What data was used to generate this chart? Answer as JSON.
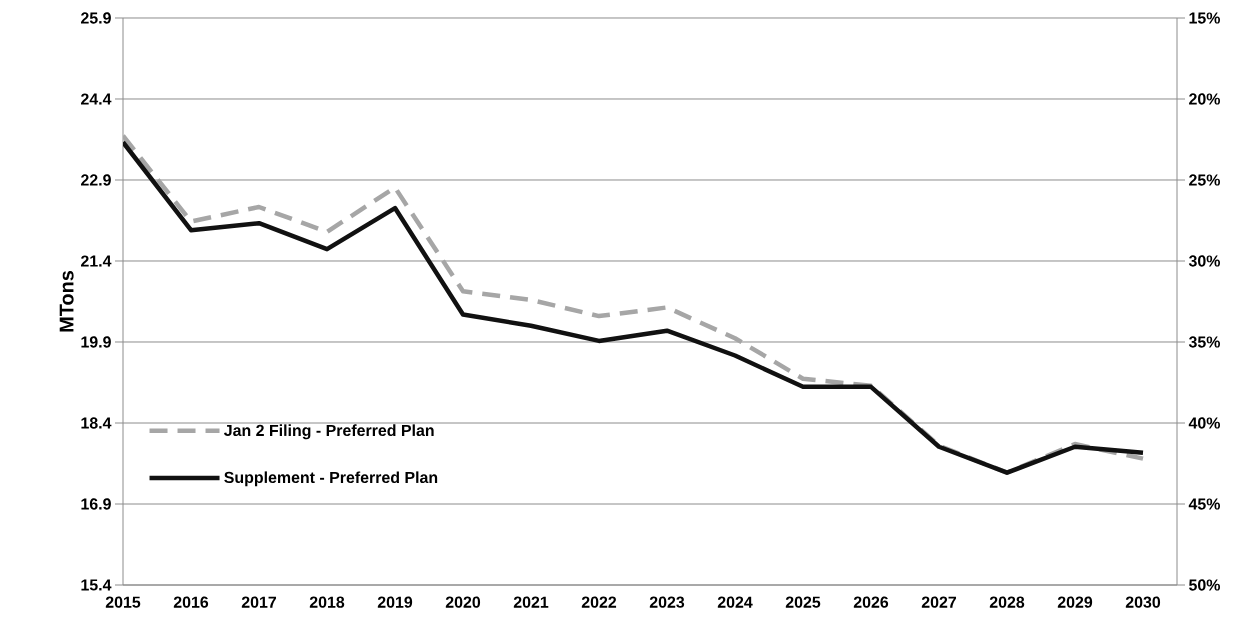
{
  "chart_data": {
    "type": "line",
    "ylabel": "MTons",
    "categories": [
      "2015",
      "2016",
      "2017",
      "2018",
      "2019",
      "2020",
      "2021",
      "2022",
      "2023",
      "2024",
      "2025",
      "2026",
      "2027",
      "2028",
      "2029",
      "2030"
    ],
    "series": [
      {
        "name": "Jan 2 Filing - Preferred Plan",
        "color": "#a6a6a6",
        "line_style": "dashed",
        "values": [
          23.72,
          22.13,
          22.4,
          21.94,
          22.76,
          20.84,
          20.68,
          20.38,
          20.54,
          19.97,
          19.22,
          19.09,
          17.98,
          17.48,
          18.01,
          17.74
        ]
      },
      {
        "name": "Supplement - Preferred Plan",
        "color": "#111111",
        "line_style": "solid",
        "values": [
          23.6,
          21.97,
          22.1,
          21.62,
          22.38,
          20.41,
          20.2,
          19.92,
          20.11,
          19.65,
          19.07,
          19.07,
          17.96,
          17.48,
          17.96,
          17.85
        ]
      }
    ],
    "ylim": [
      15.4,
      25.9
    ],
    "yticks": [
      15.4,
      16.9,
      18.4,
      19.9,
      21.4,
      22.9,
      24.4,
      25.9
    ],
    "y2lim": [
      50,
      15
    ],
    "y2ticks": [
      {
        "value": 15,
        "label": "15%"
      },
      {
        "value": 20,
        "label": "20%"
      },
      {
        "value": 25,
        "label": "25%"
      },
      {
        "value": 30,
        "label": "30%"
      },
      {
        "value": 35,
        "label": "35%"
      },
      {
        "value": 40,
        "label": "40%"
      },
      {
        "value": 45,
        "label": "45%"
      },
      {
        "value": 50,
        "label": "50%"
      }
    ],
    "grid": "y",
    "legend": "left"
  }
}
